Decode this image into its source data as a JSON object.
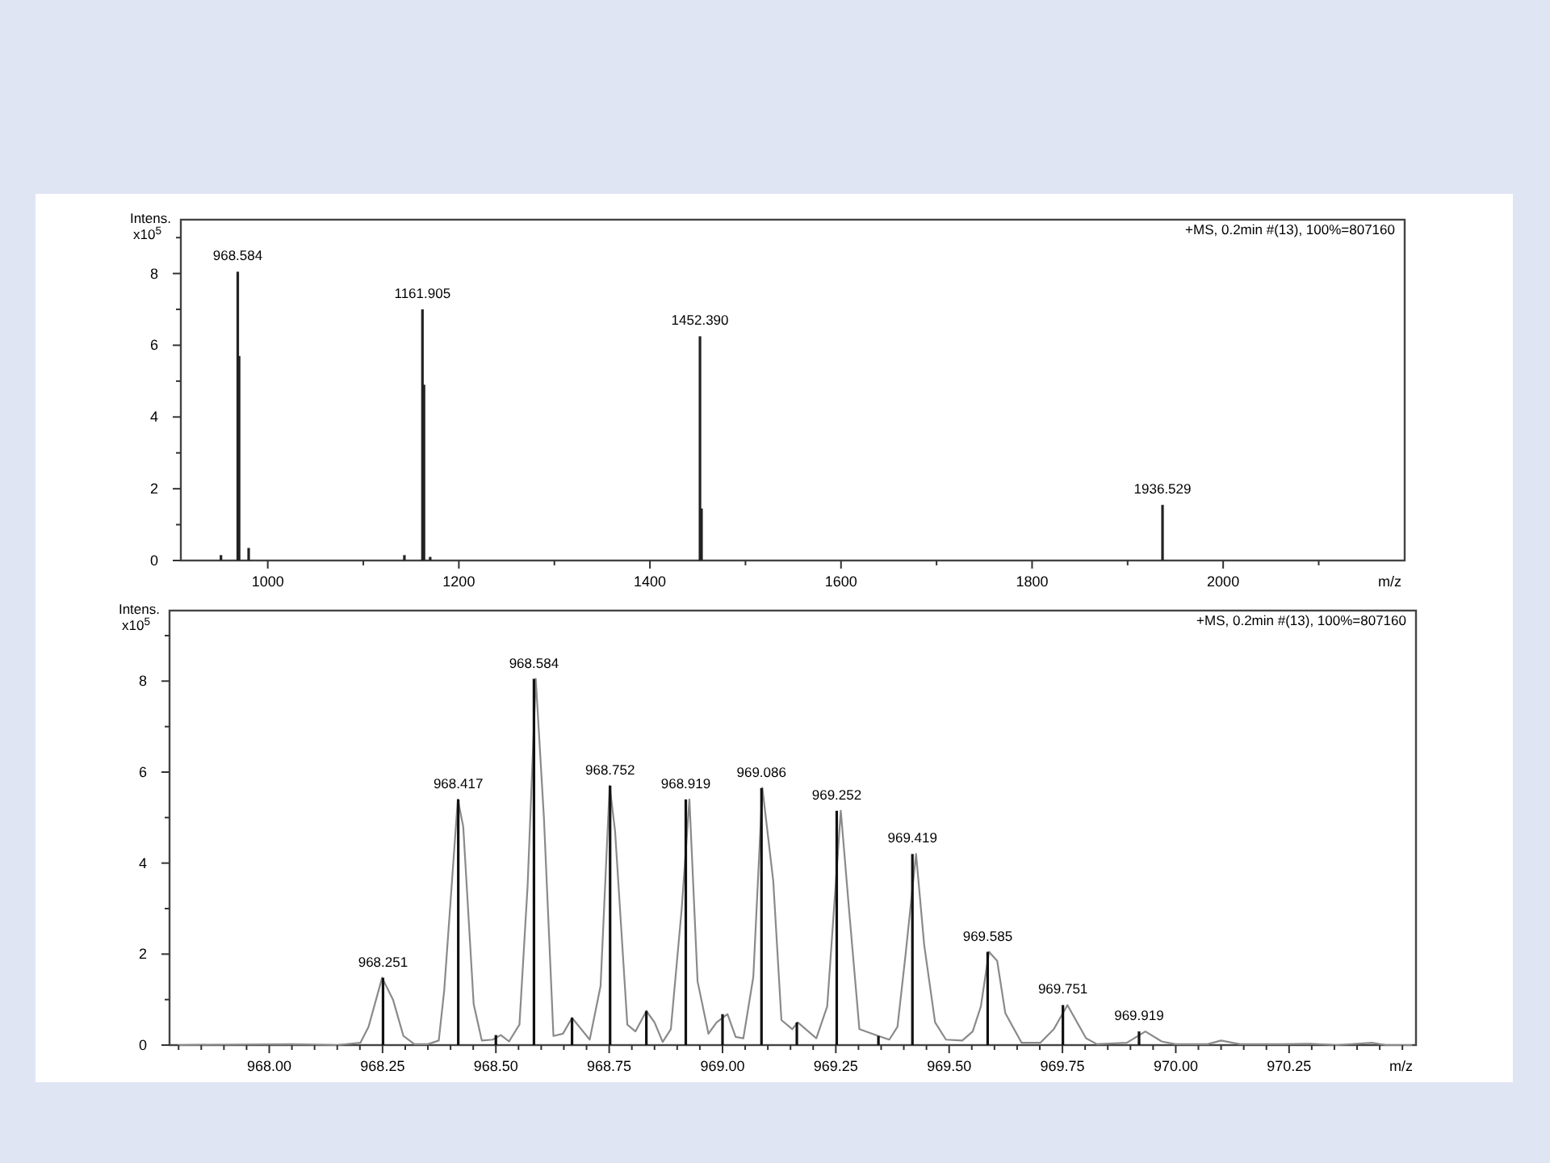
{
  "chart_data": [
    {
      "type": "bar",
      "xlabel": "m/z",
      "ylabel": "Intens. x10$^{5}$",
      "color": "#222222",
      "x": [
        951,
        968.584,
        970,
        980,
        1143,
        1161.905,
        1163.5,
        1170,
        1452.39,
        1454,
        1936.529
      ],
      "values": [
        0.15,
        8.05,
        5.7,
        0.35,
        0.15,
        7.0,
        4.9,
        0.1,
        6.25,
        1.45,
        1.55
      ],
      "xlim": [
        909,
        2190
      ],
      "ylim": [
        0,
        9.5
      ],
      "xticks": [
        1000,
        {
          "value": 1100,
          "label": null
        },
        1200,
        {
          "value": 1300,
          "label": null
        },
        1400,
        {
          "value": 1500,
          "label": null
        },
        1600,
        {
          "value": 1700,
          "label": null
        },
        1800,
        {
          "value": 1900,
          "label": null
        },
        2000,
        {
          "value": 2100,
          "label": null
        }
      ],
      "yticks": [
        0,
        {
          "value": 1,
          "label": null
        },
        2,
        {
          "value": 3,
          "label": null
        },
        4,
        {
          "value": 5,
          "label": null
        },
        6,
        {
          "value": 7,
          "label": null
        },
        8,
        {
          "value": 9,
          "label": null
        }
      ],
      "annotations": [
        "+MS, 0.2min #(13), 100%=807160",
        {
          "text": "968.584",
          "x": 968.584,
          "y": 8.05
        },
        {
          "text": "1161.905",
          "x": 1161.905,
          "y": 7.0
        },
        {
          "text": "1452.390",
          "x": 1452.39,
          "y": 6.25
        },
        {
          "text": "1936.529",
          "x": 1936.529,
          "y": 1.55
        }
      ]
    },
    {
      "type": "line",
      "xlabel": "m/z",
      "ylabel": "Intens. x10$^{5}$",
      "series": [
        {
          "type": "line",
          "color": "#8a8a8a",
          "x": [
            967.8,
            968.05,
            968.15,
            968.201,
            968.219,
            968.249,
            968.273,
            968.296,
            968.32,
            968.35,
            968.374,
            968.386,
            968.416,
            968.428,
            968.451,
            968.469,
            968.493,
            968.511,
            968.529,
            968.552,
            968.57,
            968.588,
            968.606,
            968.627,
            968.648,
            968.668,
            968.707,
            968.731,
            968.751,
            968.763,
            968.79,
            968.808,
            968.832,
            968.85,
            968.868,
            968.886,
            968.91,
            968.927,
            968.945,
            968.969,
            968.987,
            969.011,
            969.029,
            969.046,
            969.068,
            969.088,
            969.112,
            969.13,
            969.154,
            969.166,
            969.207,
            969.231,
            969.261,
            969.279,
            969.302,
            969.344,
            969.368,
            969.386,
            969.404,
            969.427,
            969.445,
            969.469,
            969.493,
            969.529,
            969.552,
            969.57,
            969.588,
            969.606,
            969.624,
            969.66,
            969.701,
            969.731,
            969.761,
            969.802,
            969.826,
            969.892,
            969.933,
            969.969,
            969.999,
            970.07,
            970.1,
            970.142,
            970.236,
            970.296,
            970.356,
            970.433,
            970.463,
            970.52
          ],
          "values": [
            0,
            0.02,
            0,
            0.05,
            0.4,
            1.48,
            1.0,
            0.2,
            0.02,
            0.02,
            0.1,
            1.2,
            5.4,
            4.8,
            0.9,
            0.1,
            0.12,
            0.22,
            0.08,
            0.45,
            3.5,
            8.05,
            5.0,
            0.2,
            0.25,
            0.6,
            0.12,
            1.3,
            5.7,
            4.7,
            0.45,
            0.3,
            0.75,
            0.5,
            0.07,
            0.35,
            3.0,
            5.4,
            1.4,
            0.25,
            0.5,
            0.68,
            0.18,
            0.15,
            1.5,
            5.65,
            3.6,
            0.55,
            0.35,
            0.5,
            0.15,
            0.85,
            5.15,
            3.0,
            0.35,
            0.2,
            0.12,
            0.4,
            2.0,
            4.2,
            2.2,
            0.5,
            0.12,
            0.1,
            0.3,
            0.85,
            2.05,
            1.85,
            0.7,
            0.05,
            0.05,
            0.35,
            0.88,
            0.15,
            0.02,
            0.05,
            0.3,
            0.08,
            0.02,
            0.02,
            0.1,
            0.02,
            0.02,
            0.03,
            0,
            0.05,
            0,
            0
          ]
        },
        {
          "type": "bar",
          "color": "#111111",
          "x": [
            968.251,
            968.417,
            968.5,
            968.584,
            968.668,
            968.752,
            968.832,
            968.919,
            969.0,
            969.086,
            969.164,
            969.252,
            969.344,
            969.419,
            969.585,
            969.751,
            969.919
          ],
          "values": [
            1.48,
            5.4,
            0.22,
            8.05,
            0.6,
            5.7,
            0.75,
            5.4,
            0.68,
            5.65,
            0.5,
            5.15,
            0.2,
            4.2,
            2.05,
            0.88,
            0.3
          ]
        }
      ],
      "xlim": [
        967.78,
        970.53
      ],
      "ylim": [
        0,
        9.55
      ],
      "xticks": [
        {
          "value": 967.8,
          "label": null
        },
        {
          "value": 967.85,
          "label": null
        },
        {
          "value": 967.9,
          "label": null
        },
        {
          "value": 967.95,
          "label": null
        },
        {
          "value": 968,
          "label": "968.00"
        },
        {
          "value": 968.05,
          "label": null
        },
        {
          "value": 968.1,
          "label": null
        },
        {
          "value": 968.15,
          "label": null
        },
        {
          "value": 968.2,
          "label": null
        },
        {
          "value": 968.25,
          "label": "968.25"
        },
        {
          "value": 968.3,
          "label": null
        },
        {
          "value": 968.35,
          "label": null
        },
        {
          "value": 968.4,
          "label": null
        },
        {
          "value": 968.45,
          "label": null
        },
        {
          "value": 968.5,
          "label": "968.50"
        },
        {
          "value": 968.55,
          "label": null
        },
        {
          "value": 968.6,
          "label": null
        },
        {
          "value": 968.65,
          "label": null
        },
        {
          "value": 968.7,
          "label": null
        },
        {
          "value": 968.75,
          "label": "968.75"
        },
        {
          "value": 968.8,
          "label": null
        },
        {
          "value": 968.85,
          "label": null
        },
        {
          "value": 968.9,
          "label": null
        },
        {
          "value": 968.95,
          "label": null
        },
        {
          "value": 969,
          "label": "969.00"
        },
        {
          "value": 969.05,
          "label": null
        },
        {
          "value": 969.1,
          "label": null
        },
        {
          "value": 969.15,
          "label": null
        },
        {
          "value": 969.2,
          "label": null
        },
        {
          "value": 969.25,
          "label": "969.25"
        },
        {
          "value": 969.3,
          "label": null
        },
        {
          "value": 969.35,
          "label": null
        },
        {
          "value": 969.4,
          "label": null
        },
        {
          "value": 969.45,
          "label": null
        },
        {
          "value": 969.5,
          "label": "969.50"
        },
        {
          "value": 969.55,
          "label": null
        },
        {
          "value": 969.6,
          "label": null
        },
        {
          "value": 969.65,
          "label": null
        },
        {
          "value": 969.7,
          "label": null
        },
        {
          "value": 969.75,
          "label": "969.75"
        },
        {
          "value": 969.8,
          "label": null
        },
        {
          "value": 969.85,
          "label": null
        },
        {
          "value": 969.9,
          "label": null
        },
        {
          "value": 969.95,
          "label": null
        },
        {
          "value": 970,
          "label": "970.00"
        },
        {
          "value": 970.05,
          "label": null
        },
        {
          "value": 970.1,
          "label": null
        },
        {
          "value": 970.15,
          "label": null
        },
        {
          "value": 970.2,
          "label": null
        },
        {
          "value": 970.25,
          "label": "970.25"
        },
        {
          "value": 970.3,
          "label": null
        },
        {
          "value": 970.35,
          "label": null
        },
        {
          "value": 970.4,
          "label": null
        },
        {
          "value": 970.45,
          "label": null
        },
        {
          "value": 970.5,
          "label": null
        }
      ],
      "yticks": [
        0,
        {
          "value": 1,
          "label": null
        },
        2,
        {
          "value": 3,
          "label": null
        },
        4,
        {
          "value": 5,
          "label": null
        },
        6,
        {
          "value": 7,
          "label": null
        },
        8,
        {
          "value": 9,
          "label": null
        }
      ],
      "annotations": [
        "+MS, 0.2min #(13), 100%=807160",
        {
          "text": "968.251",
          "x": 968.251,
          "y": 1.48
        },
        {
          "text": "968.417",
          "x": 968.417,
          "y": 5.4
        },
        {
          "text": "968.584",
          "x": 968.584,
          "y": 8.05
        },
        {
          "text": "968.752",
          "x": 968.752,
          "y": 5.7
        },
        {
          "text": "968.919",
          "x": 968.919,
          "y": 5.4
        },
        {
          "text": "969.086",
          "x": 969.086,
          "y": 5.65
        },
        {
          "text": "969.252",
          "x": 969.252,
          "y": 5.15
        },
        {
          "text": "969.419",
          "x": 969.419,
          "y": 4.2
        },
        {
          "text": "969.585",
          "x": 969.585,
          "y": 2.05
        },
        {
          "text": "969.751",
          "x": 969.751,
          "y": 0.88
        },
        {
          "text": "969.919",
          "x": 969.919,
          "y": 0.3
        }
      ]
    }
  ]
}
